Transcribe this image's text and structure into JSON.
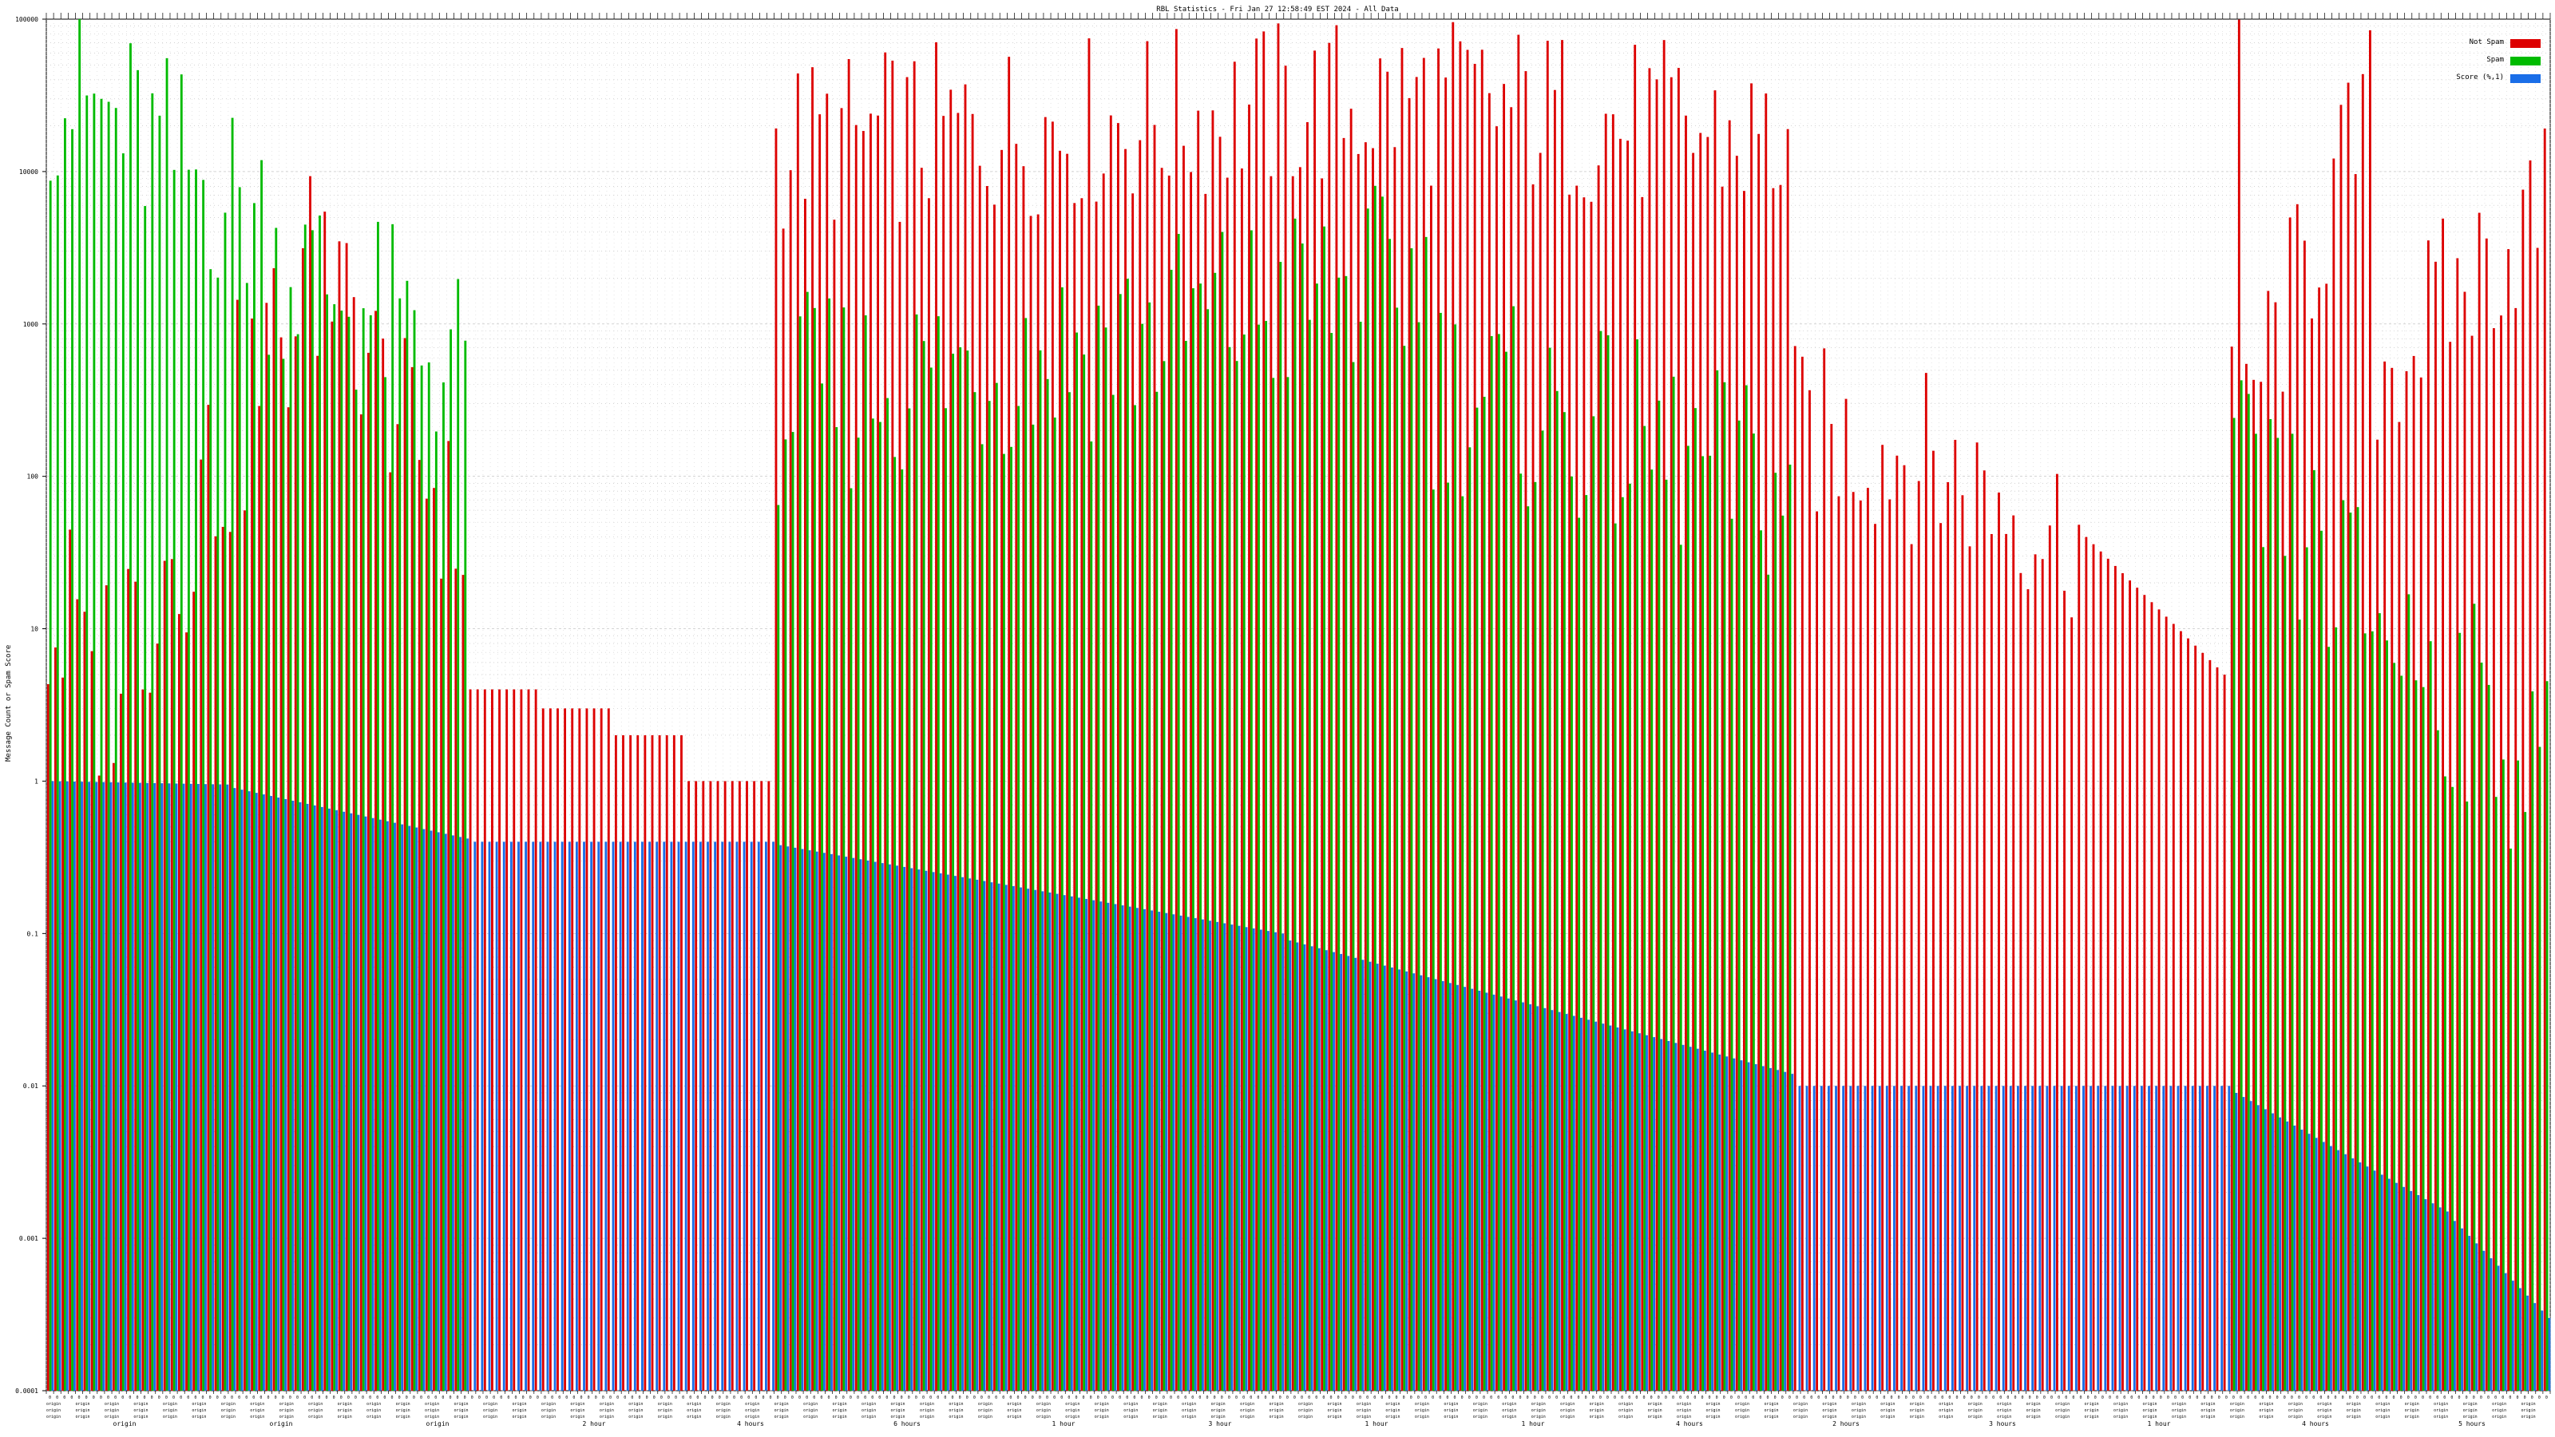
{
  "chart_data": {
    "type": "bar",
    "title": "RBL Statistics - Fri Jan 27 12:58:49 EST 2024 - All Data",
    "ylabel": "Message Count or Spam Score",
    "xlabel": "",
    "yscale": "log",
    "ylim": [
      0.0001,
      100000
    ],
    "yticks": [
      100000,
      10000,
      1000,
      100,
      10,
      1,
      0.1,
      0.01,
      0.001,
      0.0001
    ],
    "ytick_labels": [
      "100000",
      "10000",
      "1000",
      "100",
      "10",
      "1",
      "0.1",
      "0.01",
      "0.001",
      "0.0001"
    ],
    "grid": true,
    "legend_position": "top-right",
    "series": [
      {
        "name": "Not Spam",
        "color": "#dd0000",
        "segments": [
          {
            "start": 0,
            "end": 5,
            "from": 7,
            "to": 7
          },
          {
            "start": 5,
            "end": 39,
            "from": 2,
            "to": 2000
          },
          {
            "start": 39,
            "end": 58,
            "from": 2000,
            "to": 35
          },
          {
            "start": 58,
            "end": 68,
            "from": 4,
            "to": 4
          },
          {
            "start": 68,
            "end": 78,
            "from": 3,
            "to": 3
          },
          {
            "start": 78,
            "end": 88,
            "from": 2,
            "to": 2
          },
          {
            "start": 88,
            "end": 100,
            "from": 1,
            "to": 1
          },
          {
            "start": 100,
            "end": 190,
            "from": 15000,
            "to": 30000
          },
          {
            "start": 190,
            "end": 240,
            "from": 30000,
            "to": 15000
          },
          {
            "start": 240,
            "end": 255,
            "from": 200,
            "to": 150
          },
          {
            "start": 255,
            "end": 280,
            "from": 150,
            "to": 40
          },
          {
            "start": 280,
            "end": 300,
            "from": 40,
            "to": 5
          },
          {
            "start": 300,
            "end": 302,
            "from": 600,
            "to": 30000
          },
          {
            "start": 302,
            "end": 320,
            "from": 300,
            "to": 25000
          },
          {
            "start": 320,
            "end": 344,
            "from": 500,
            "to": 6000
          }
        ]
      },
      {
        "name": "Spam",
        "color": "#00bb00",
        "segments": [
          {
            "start": 0,
            "end": 30,
            "from": 40000,
            "to": 5000
          },
          {
            "start": 30,
            "end": 58,
            "from": 3000,
            "to": 500
          },
          {
            "start": 58,
            "end": 100,
            "from": 0,
            "to": 0
          },
          {
            "start": 100,
            "end": 190,
            "from": 300,
            "to": 2000
          },
          {
            "start": 190,
            "end": 240,
            "from": 400,
            "to": 80
          },
          {
            "start": 240,
            "end": 300,
            "from": 0,
            "to": 0
          },
          {
            "start": 300,
            "end": 344,
            "from": 100,
            "to": 1
          }
        ]
      },
      {
        "name": "Score (%,1)",
        "color": "#1a6ee8",
        "segments": [
          {
            "start": 0,
            "end": 25,
            "from": 1.0,
            "to": 0.95
          },
          {
            "start": 25,
            "end": 58,
            "from": 0.9,
            "to": 0.42
          },
          {
            "start": 58,
            "end": 100,
            "from": 0.4,
            "to": 0.4
          },
          {
            "start": 100,
            "end": 170,
            "from": 0.38,
            "to": 0.1
          },
          {
            "start": 170,
            "end": 240,
            "from": 0.09,
            "to": 0.012
          },
          {
            "start": 240,
            "end": 300,
            "from": 0.01,
            "to": 0.01
          },
          {
            "start": 300,
            "end": 330,
            "from": 0.009,
            "to": 0.0015
          },
          {
            "start": 330,
            "end": 344,
            "from": 0.0013,
            "to": 0.0003
          }
        ]
      }
    ],
    "categories_count": 344,
    "category_label_text": "origin",
    "period_labels": [
      "origin",
      "origin",
      "origin",
      "2 hour",
      "4 hours",
      "6 hours",
      "1 hour",
      "3 hour",
      "1 hour",
      "1 hour",
      "4 hours",
      "2 hours",
      "3 hours",
      "1 hour",
      "4 hours",
      "5 hours"
    ]
  },
  "legend": {
    "items": [
      {
        "label": "Not Spam",
        "color": "#dd0000"
      },
      {
        "label": "Spam",
        "color": "#00bb00"
      },
      {
        "label": "Score (%,1)",
        "color": "#1a6ee8"
      }
    ]
  }
}
